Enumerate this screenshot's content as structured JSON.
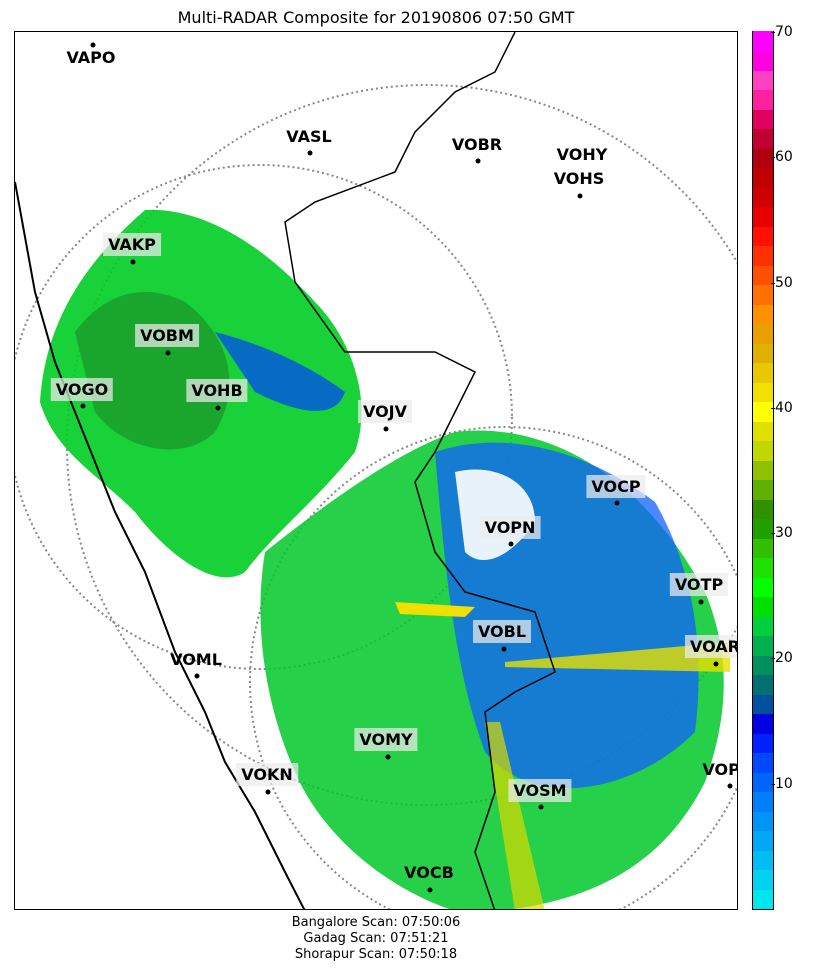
{
  "title": "Multi-RADAR Composite for 20190806 07:50 GMT",
  "stations": [
    {
      "code": "VAPO",
      "boxed": false
    },
    {
      "code": "VASL",
      "boxed": false
    },
    {
      "code": "VOBR",
      "boxed": false
    },
    {
      "code": "VOHY",
      "boxed": false
    },
    {
      "code": "VOHS",
      "boxed": false
    },
    {
      "code": "VAKP",
      "boxed": true
    },
    {
      "code": "VOBM",
      "boxed": true
    },
    {
      "code": "VOGO",
      "boxed": true
    },
    {
      "code": "VOHB",
      "boxed": true
    },
    {
      "code": "VOJV",
      "boxed": true
    },
    {
      "code": "VOCP",
      "boxed": true
    },
    {
      "code": "VOPN",
      "boxed": true
    },
    {
      "code": "VOTP",
      "boxed": true
    },
    {
      "code": "VOBL",
      "boxed": true
    },
    {
      "code": "VOAR",
      "boxed": true
    },
    {
      "code": "VOML",
      "boxed": false
    },
    {
      "code": "VOMY",
      "boxed": true
    },
    {
      "code": "VOKN",
      "boxed": true
    },
    {
      "code": "VOSM",
      "boxed": true
    },
    {
      "code": "VOPC",
      "boxed": false
    },
    {
      "code": "VOCB",
      "boxed": false
    }
  ],
  "colorbar": {
    "ticks": [
      "10",
      "20",
      "30",
      "40",
      "50",
      "60",
      "70"
    ],
    "min": 0,
    "max": 70,
    "colors": [
      "#00e5ee",
      "#00d2f0",
      "#00bdf2",
      "#00a8f4",
      "#0094f6",
      "#0080f8",
      "#0066fa",
      "#0048fc",
      "#0020ff",
      "#0000e0",
      "#0050a0",
      "#007070",
      "#009060",
      "#00b050",
      "#00d040",
      "#00e000",
      "#00ff00",
      "#20e000",
      "#30c000",
      "#20a000",
      "#309000",
      "#60b000",
      "#90c000",
      "#c0d800",
      "#e0e000",
      "#ffff00",
      "#f0e000",
      "#e8c800",
      "#e0b000",
      "#e8a000",
      "#ff9000",
      "#ff7000",
      "#ff5000",
      "#ff3000",
      "#ff1000",
      "#e80000",
      "#d00000",
      "#c00000",
      "#b00010",
      "#c00030",
      "#e00060",
      "#ff20a0",
      "#ff40c0",
      "#ff00e0",
      "#ff00ff"
    ]
  },
  "footer": {
    "line1": "Bangalore Scan: 07:50:06",
    "line2": "Gadag Scan: 07:51:21",
    "line3": "Shorapur Scan: 07:50:18"
  }
}
